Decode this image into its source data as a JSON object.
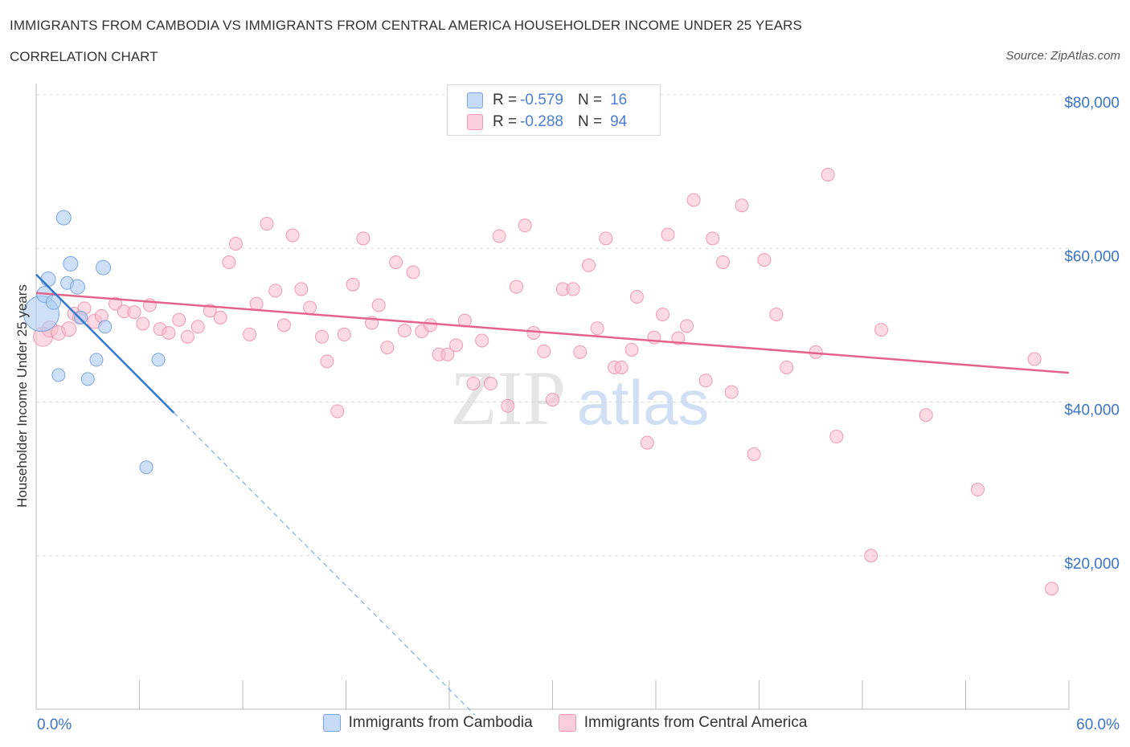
{
  "header": {
    "title": "IMMIGRANTS FROM CAMBODIA VS IMMIGRANTS FROM CENTRAL AMERICA HOUSEHOLDER INCOME UNDER 25 YEARS",
    "subtitle": "CORRELATION CHART",
    "source": "Source: ZipAtlas.com"
  },
  "legend_top": {
    "r_label": "R =",
    "n_label": "N =",
    "rows": [
      {
        "r": "-0.579",
        "n": "16"
      },
      {
        "r": "-0.288",
        "n": "94"
      }
    ]
  },
  "legend_bottom": {
    "items": [
      "Immigrants from Cambodia",
      "Immigrants from Central America"
    ]
  },
  "watermark": {
    "zip": "ZIP",
    "atlas": "atlas"
  },
  "colors": {
    "cambodia_fill": "#aecbf2",
    "cambodia_stroke": "#7aa6e0",
    "cambodia_line": "#2f78cf",
    "central_fill": "#f7bccc",
    "central_stroke": "#ef9ab2",
    "central_line": "#e4638c",
    "tick_text": "#3b74c9",
    "grid": "#dddddd"
  },
  "chart_data": {
    "type": "scatter",
    "ylabel": "Householder Income Under 25 years",
    "xlim": [
      0,
      60
    ],
    "ylim": [
      0,
      80000
    ],
    "x_tick_labels": [
      "0.0%",
      "60.0%"
    ],
    "y_ticks": [
      20000,
      40000,
      60000,
      80000
    ],
    "y_tick_labels": [
      "$20,000",
      "$40,000",
      "$60,000",
      "$80,000"
    ],
    "grid": true,
    "series": [
      {
        "name": "Immigrants from Cambodia",
        "r": -0.579,
        "n": 16,
        "trend": {
          "x0": 0.0,
          "y0": 56600,
          "x1": 8.0,
          "y1": 38600,
          "dash_to_x": 25.5
        },
        "points": [
          [
            0.3,
            51500,
            22
          ],
          [
            0.5,
            54000,
            10
          ],
          [
            0.7,
            56000,
            9
          ],
          [
            1.0,
            53000,
            9
          ],
          [
            1.3,
            43500,
            8
          ],
          [
            1.6,
            64000,
            9
          ],
          [
            1.8,
            55500,
            8
          ],
          [
            2.0,
            58000,
            9
          ],
          [
            2.4,
            55000,
            9
          ],
          [
            2.6,
            51000,
            8
          ],
          [
            3.0,
            43000,
            8
          ],
          [
            3.5,
            45500,
            8
          ],
          [
            3.9,
            57500,
            9
          ],
          [
            4.0,
            49800,
            8
          ],
          [
            7.1,
            45500,
            8
          ],
          [
            6.4,
            31500,
            8
          ]
        ]
      },
      {
        "name": "Immigrants from Central America",
        "r": -0.288,
        "n": 94,
        "trend": {
          "x0": 0.0,
          "y0": 54200,
          "x1": 60.0,
          "y1": 43800
        },
        "points": [
          [
            0.4,
            48500,
            12
          ],
          [
            0.8,
            49500,
            10
          ],
          [
            1.3,
            49000,
            9
          ],
          [
            1.9,
            49500,
            9
          ],
          [
            2.2,
            51500,
            8
          ],
          [
            2.5,
            51000,
            8
          ],
          [
            2.8,
            52200,
            8
          ],
          [
            3.4,
            50500,
            9
          ],
          [
            3.8,
            51200,
            8
          ],
          [
            4.6,
            52800,
            8
          ],
          [
            5.1,
            51800,
            8
          ],
          [
            5.7,
            51700,
            8
          ],
          [
            6.2,
            50200,
            8
          ],
          [
            6.6,
            52600,
            8
          ],
          [
            7.2,
            49500,
            8
          ],
          [
            7.7,
            49000,
            8
          ],
          [
            8.3,
            50700,
            8
          ],
          [
            8.8,
            48500,
            8
          ],
          [
            9.4,
            49800,
            8
          ],
          [
            10.1,
            51900,
            8
          ],
          [
            10.7,
            51000,
            8
          ],
          [
            11.2,
            58200,
            8
          ],
          [
            11.6,
            60600,
            8
          ],
          [
            12.4,
            48800,
            8
          ],
          [
            12.8,
            52800,
            8
          ],
          [
            13.4,
            63200,
            8
          ],
          [
            13.9,
            54500,
            8
          ],
          [
            14.4,
            50000,
            8
          ],
          [
            14.9,
            61700,
            8
          ],
          [
            15.4,
            54700,
            8
          ],
          [
            15.9,
            52300,
            8
          ],
          [
            16.6,
            48500,
            8
          ],
          [
            16.9,
            45300,
            8
          ],
          [
            17.5,
            38800,
            8
          ],
          [
            17.9,
            48800,
            8
          ],
          [
            18.4,
            55300,
            8
          ],
          [
            19.0,
            61300,
            8
          ],
          [
            19.5,
            50300,
            8
          ],
          [
            19.9,
            52600,
            8
          ],
          [
            20.4,
            47100,
            8
          ],
          [
            20.9,
            58200,
            8
          ],
          [
            21.4,
            49300,
            8
          ],
          [
            21.9,
            56900,
            8
          ],
          [
            22.4,
            49200,
            8
          ],
          [
            22.9,
            50000,
            8
          ],
          [
            23.4,
            46200,
            8
          ],
          [
            23.9,
            46200,
            8
          ],
          [
            24.4,
            47400,
            8
          ],
          [
            24.9,
            50600,
            8
          ],
          [
            25.4,
            42400,
            8
          ],
          [
            25.9,
            48000,
            8
          ],
          [
            26.4,
            42400,
            8
          ],
          [
            26.9,
            61600,
            8
          ],
          [
            27.4,
            39500,
            8
          ],
          [
            27.9,
            55000,
            8
          ],
          [
            28.4,
            63000,
            8
          ],
          [
            28.9,
            49000,
            8
          ],
          [
            29.5,
            46600,
            8
          ],
          [
            30.0,
            40300,
            8
          ],
          [
            30.6,
            54700,
            8
          ],
          [
            31.2,
            54700,
            8
          ],
          [
            31.6,
            46500,
            8
          ],
          [
            32.1,
            57800,
            8
          ],
          [
            32.6,
            49600,
            8
          ],
          [
            33.1,
            61300,
            8
          ],
          [
            33.6,
            44500,
            8
          ],
          [
            34.0,
            44500,
            8
          ],
          [
            34.6,
            46800,
            8
          ],
          [
            34.9,
            53700,
            8
          ],
          [
            35.5,
            34700,
            8
          ],
          [
            35.9,
            48400,
            8
          ],
          [
            36.4,
            51400,
            8
          ],
          [
            36.7,
            61800,
            8
          ],
          [
            37.3,
            48300,
            8
          ],
          [
            37.8,
            49900,
            8
          ],
          [
            38.2,
            66300,
            8
          ],
          [
            38.9,
            42800,
            8
          ],
          [
            39.3,
            61300,
            8
          ],
          [
            39.9,
            58200,
            8
          ],
          [
            40.4,
            41300,
            8
          ],
          [
            41.0,
            65600,
            8
          ],
          [
            41.7,
            33200,
            8
          ],
          [
            42.3,
            58500,
            8
          ],
          [
            43.0,
            51400,
            8
          ],
          [
            43.6,
            44500,
            8
          ],
          [
            45.3,
            46500,
            8
          ],
          [
            46.0,
            69600,
            8
          ],
          [
            46.5,
            35500,
            8
          ],
          [
            48.5,
            20000,
            8
          ],
          [
            49.1,
            49400,
            8
          ],
          [
            51.7,
            38300,
            8
          ],
          [
            54.7,
            28600,
            8
          ],
          [
            58.0,
            45600,
            8
          ],
          [
            59.0,
            15700,
            8
          ]
        ]
      }
    ]
  }
}
